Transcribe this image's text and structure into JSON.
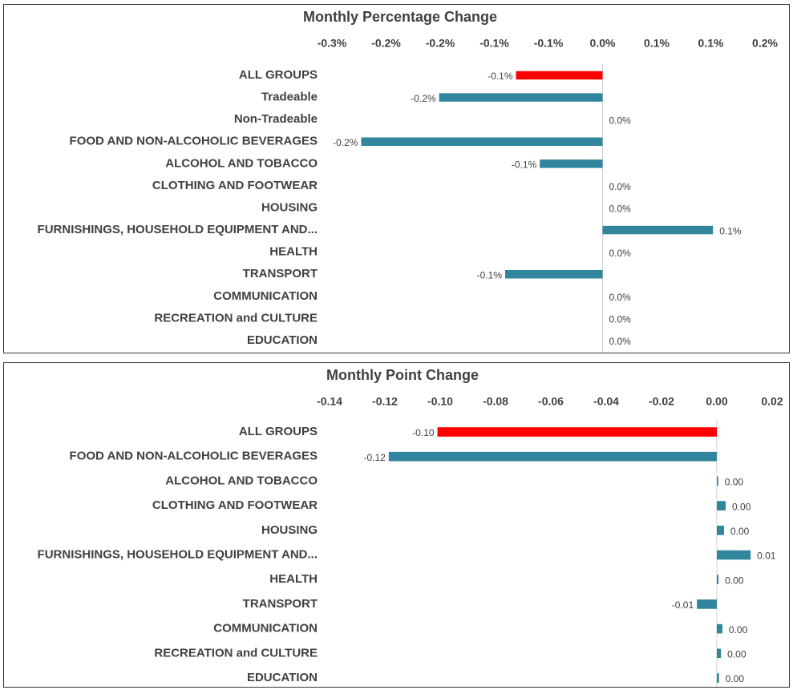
{
  "chart_data": [
    {
      "type": "bar",
      "orientation": "horizontal",
      "title": "Monthly Percentage Change",
      "categories": [
        "ALL GROUPS",
        "Tradeable",
        "Non-Tradeable",
        "FOOD AND NON-ALCOHOLIC BEVERAGES",
        "ALCOHOL AND TOBACCO",
        "CLOTHING AND FOOTWEAR",
        "HOUSING",
        "FURNISHINGS, HOUSEHOLD EQUIPMENT AND...",
        "HEALTH",
        "TRANSPORT",
        "COMMUNICATION",
        "RECREATION and CULTURE",
        "EDUCATION"
      ],
      "values": [
        -0.08,
        -0.151,
        0,
        -0.223,
        -0.058,
        0,
        0,
        0.102,
        0,
        -0.09,
        0,
        0,
        0
      ],
      "value_labels": [
        "-0.1%",
        "-0.2%",
        "0.0%",
        "-0.2%",
        "-0.1%",
        "0.0%",
        "0.0%",
        "0.1%",
        "0.0%",
        "-0.1%",
        "0.0%",
        "0.0%",
        "0.0%"
      ],
      "colors": [
        "#ff0000",
        "#31859c",
        "#31859c",
        "#31859c",
        "#31859c",
        "#31859c",
        "#31859c",
        "#31859c",
        "#31859c",
        "#31859c",
        "#31859c",
        "#31859c",
        "#31859c"
      ],
      "xlim": [
        -0.25,
        0.15
      ],
      "xticks": [
        {
          "value": -0.25,
          "label": "-0.3%"
        },
        {
          "value": -0.2,
          "label": "-0.2%"
        },
        {
          "value": -0.15,
          "label": "-0.2%"
        },
        {
          "value": -0.1,
          "label": "-0.1%"
        },
        {
          "value": -0.05,
          "label": "-0.1%"
        },
        {
          "value": 0,
          "label": "0.0%"
        },
        {
          "value": 0.05,
          "label": "0.1%"
        },
        {
          "value": 0.1,
          "label": "0.1%"
        },
        {
          "value": 0.15,
          "label": "0.2%"
        }
      ]
    },
    {
      "type": "bar",
      "orientation": "horizontal",
      "title": "Monthly Point Change",
      "categories": [
        "ALL GROUPS",
        "FOOD AND NON-ALCOHOLIC BEVERAGES",
        "ALCOHOL AND TOBACCO",
        "CLOTHING AND FOOTWEAR",
        "HOUSING",
        "FURNISHINGS, HOUSEHOLD EQUIPMENT AND...",
        "HEALTH",
        "TRANSPORT",
        "COMMUNICATION",
        "RECREATION and CULTURE",
        "EDUCATION"
      ],
      "values": [
        -0.101,
        -0.1186,
        0.0005,
        0.0032,
        0.0026,
        0.0122,
        0.0006,
        -0.0072,
        0.002,
        0.0015,
        0.0008
      ],
      "value_labels": [
        "-0.10",
        "-0.12",
        "0.00",
        "0.00",
        "0.00",
        "0.01",
        "0.00",
        "-0.01",
        "0.00",
        "0.00",
        "0.00"
      ],
      "colors": [
        "#ff0000",
        "#31859c",
        "#31859c",
        "#31859c",
        "#31859c",
        "#31859c",
        "#31859c",
        "#31859c",
        "#31859c",
        "#31859c",
        "#31859c"
      ],
      "xlim": [
        -0.14,
        0.02
      ],
      "xticks": [
        -0.14,
        -0.12,
        {
          "value": -0.1,
          "label": "-0.10"
        },
        -0.08,
        -0.06,
        -0.04,
        -0.02,
        {
          "value": 0,
          "label": "0.00"
        },
        0.02
      ]
    }
  ]
}
